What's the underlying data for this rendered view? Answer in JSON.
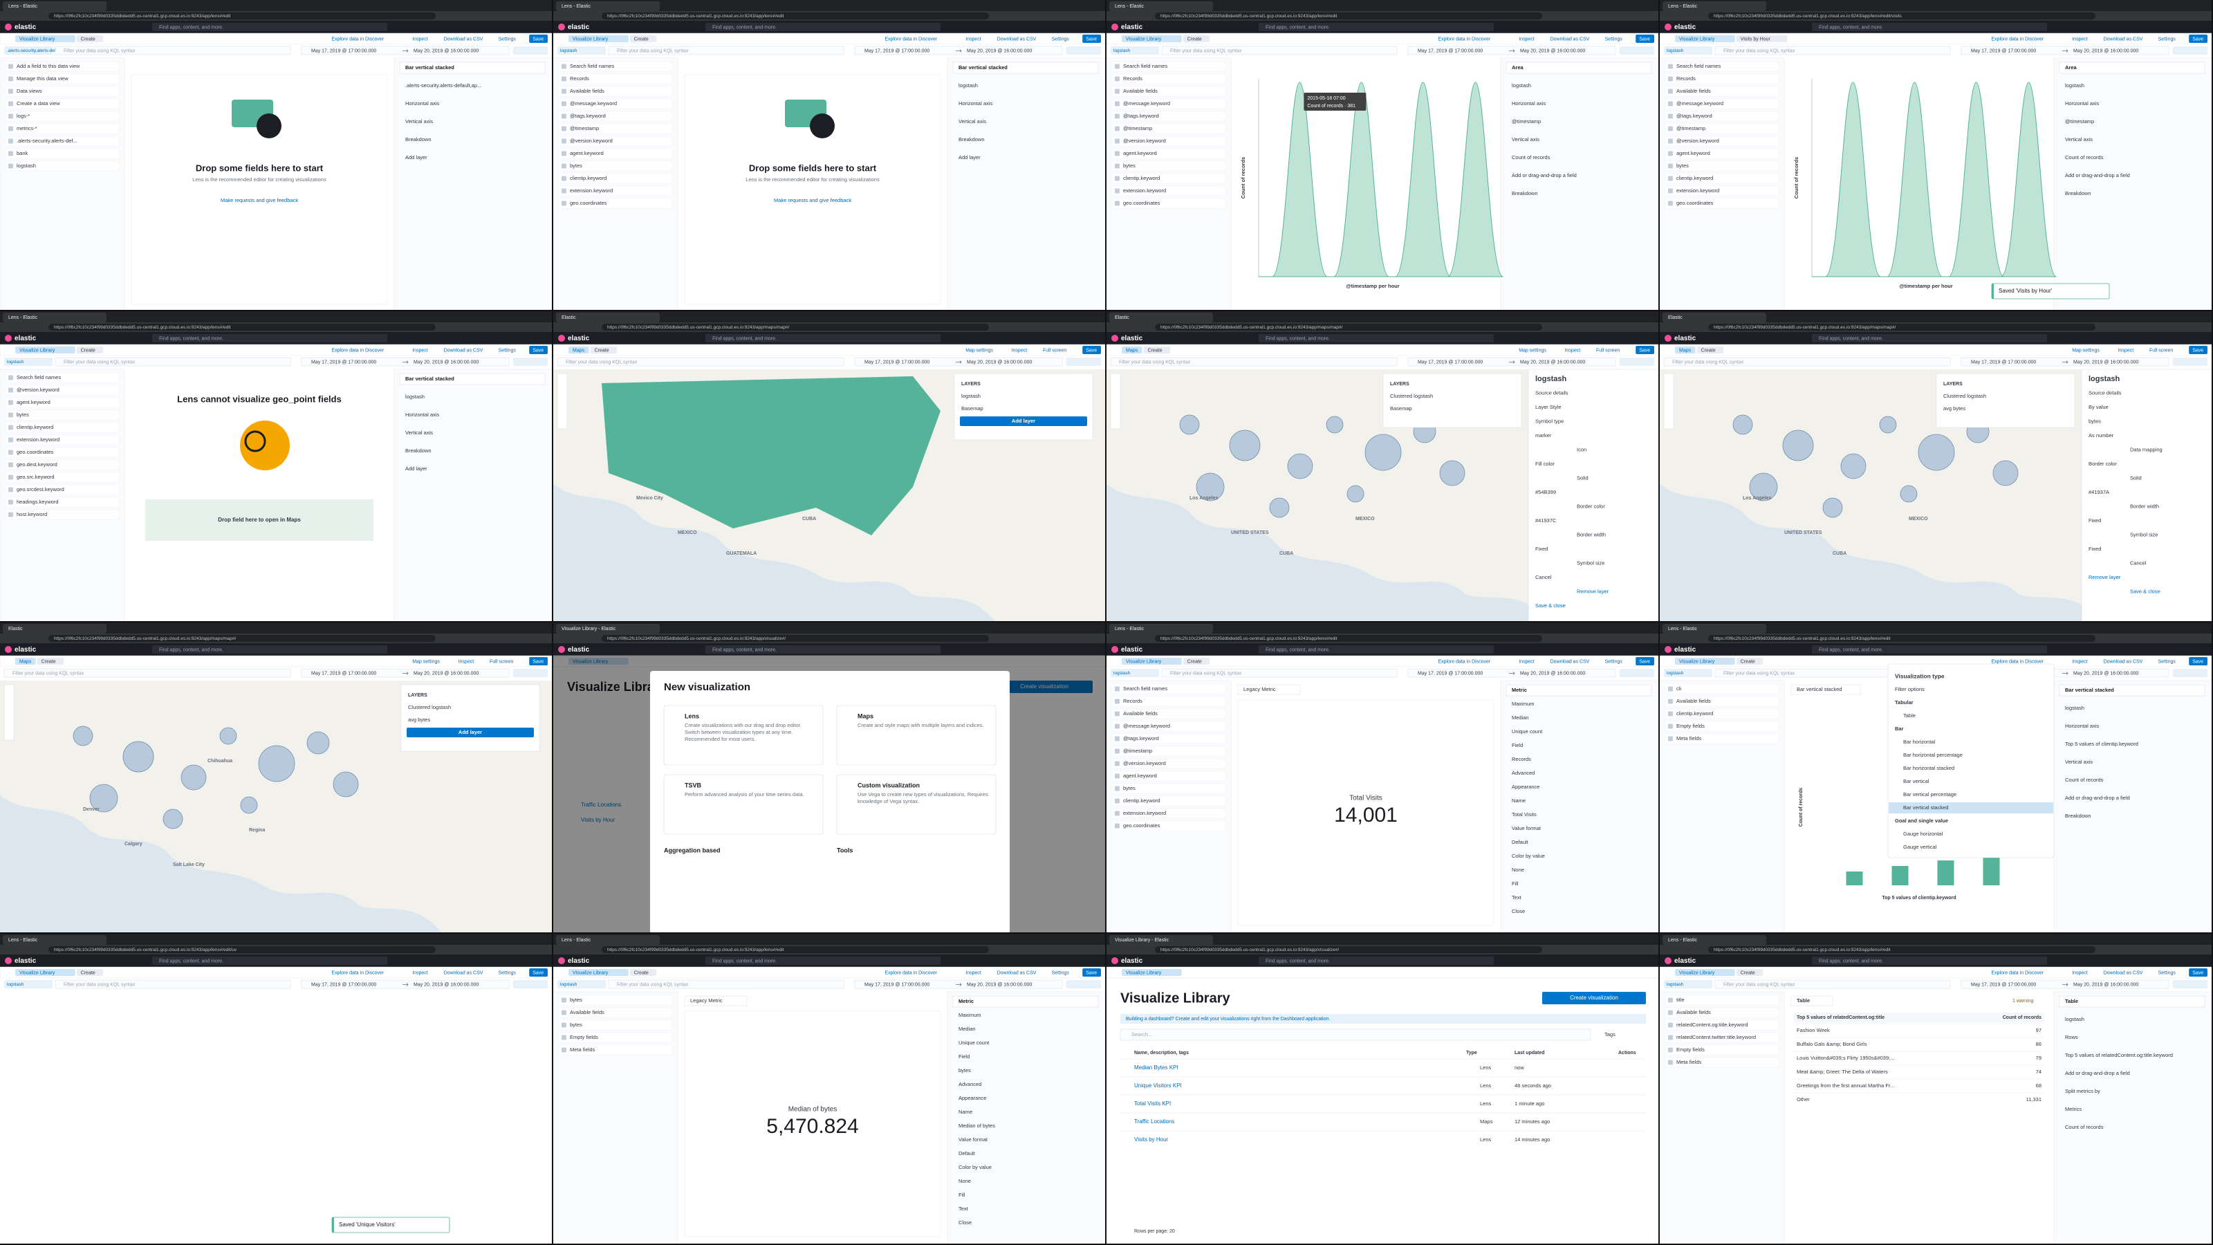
{
  "common": {
    "brand": "elastic",
    "search": "Find apps, content, and more.",
    "query": "Filter your data using KQL syntax",
    "from": "May 17, 2019 @ 17:00:00.000",
    "to": "May 20, 2019 @ 16:00:00.000"
  },
  "panels": [
    {
      "tab": "Lens - Elastic",
      "url": "https://0f6c2fc10c234f99d0335ddbdedd5.us-central1.gcp.cloud.es.io:9243/app/lens#/edit",
      "crumbs": [
        "Visualize Library",
        "Create"
      ],
      "actions": [
        "Explore data in Discover",
        "Inspect",
        "Download as CSV",
        "Settings",
        "Save"
      ],
      "filter": true,
      "index": ".alerts-security.alerts-default,ap...",
      "kind": "empty",
      "left": [
        "Add a field to this data view",
        "Manage this data view",
        "Data views",
        "Create a data view",
        "logs-*",
        "metrics-*",
        ".alerts-security.alerts-def...",
        "bank",
        "logstash"
      ],
      "center": [
        "Drop some fields here to start",
        "Lens is the recommended editor for creating visualizations",
        "Make requests and give feedback"
      ],
      "right": [
        "Bar vertical stacked",
        ".alerts-security.alerts-default,ap...",
        "Horizontal axis",
        "Vertical axis",
        "Breakdown",
        "Add layer"
      ]
    },
    {
      "tab": "Lens - Elastic",
      "url": "https://0f6c2fc10c234f99d0335ddbdedd5.us-central1.gcp.cloud.es.io:9243/app/lens#/edit",
      "crumbs": [
        "Visualize Library",
        "Create"
      ],
      "actions": [
        "Explore data in Discover",
        "Inspect",
        "Download as CSV",
        "Settings",
        "Save"
      ],
      "filter": true,
      "index": "logstash",
      "kind": "empty",
      "left": [
        "Search field names",
        "Records",
        "Available fields",
        "@message.keyword",
        "@tags.keyword",
        "@timestamp",
        "@version.keyword",
        "agent.keyword",
        "bytes",
        "clientip.keyword",
        "extension.keyword",
        "geo.coordinates"
      ],
      "center": [
        "Drop some fields here to start",
        "Lens is the recommended editor for creating visualizations",
        "Make requests and give feedback"
      ],
      "right": [
        "Bar vertical stacked",
        "logstash",
        "Horizontal axis",
        "Vertical axis",
        "Breakdown",
        "Add layer"
      ]
    },
    {
      "tab": "Lens - Elastic",
      "url": "https://0f6c2fc10c234f99d0335ddbdedd5.us-central1.gcp.cloud.es.io:9243/app/lens#/edit",
      "crumbs": [
        "Visualize Library",
        "Create"
      ],
      "actions": [
        "Explore data in Discover",
        "Inspect",
        "Download as CSV",
        "Settings",
        "Save"
      ],
      "filter": true,
      "index": "logstash",
      "kind": "area",
      "left": [
        "Search field names",
        "Records",
        "Available fields",
        "@message.keyword",
        "@tags.keyword",
        "@timestamp",
        "@version.keyword",
        "agent.keyword",
        "bytes",
        "clientip.keyword",
        "extension.keyword",
        "geo.coordinates"
      ],
      "center": [
        "2015-05-18 07:00",
        "Count of records · 381",
        "@timestamp per hour",
        "Count of records"
      ],
      "right": [
        "Area",
        "logstash",
        "Horizontal axis",
        "@timestamp",
        "Vertical axis",
        "Count of records",
        "Add or drag-and-drop a field",
        "Breakdown"
      ]
    },
    {
      "tab": "Lens - Elastic",
      "url": "https://0f6c2fc10c234f99d0335ddbdedd5.us-central1.gcp.cloud.es.io:9243/app/lens#/edit/visits",
      "crumbs": [
        "Visualize Library",
        "Visits by Hour"
      ],
      "actions": [
        "Explore data in Discover",
        "Inspect",
        "Download as CSV",
        "Settings",
        "Save"
      ],
      "filter": true,
      "index": "logstash",
      "kind": "area",
      "left": [
        "Search field names",
        "Records",
        "Available fields",
        "@message.keyword",
        "@tags.keyword",
        "@timestamp",
        "@version.keyword",
        "agent.keyword",
        "bytes",
        "clientip.keyword",
        "extension.keyword",
        "geo.coordinates"
      ],
      "center": [
        "@timestamp per hour",
        "Count of records"
      ],
      "right": [
        "Area",
        "logstash",
        "Horizontal axis",
        "@timestamp",
        "Vertical axis",
        "Count of records",
        "Add or drag-and-drop a field",
        "Breakdown"
      ],
      "toast": "Saved 'Visits by Hour'"
    },
    {
      "tab": "Lens - Elastic",
      "url": "https://0f6c2fc10c234f99d0335ddbdedd5.us-central1.gcp.cloud.es.io:9243/app/lens#/edit",
      "crumbs": [
        "Visualize Library",
        "Create"
      ],
      "actions": [
        "Explore data in Discover",
        "Inspect",
        "Download as CSV",
        "Settings",
        "Save"
      ],
      "filter": true,
      "index": "logstash",
      "kind": "geo",
      "left": [
        "Search field names",
        "@version.keyword",
        "agent.keyword",
        "bytes",
        "clientip.keyword",
        "extension.keyword",
        "geo.coordinates",
        "geo.dest.keyword",
        "geo.src.keyword",
        "geo.srcdest.keyword",
        "headings.keyword",
        "host.keyword"
      ],
      "center": [
        "Lens cannot visualize geo_point fields",
        "Drop field here to open in Maps"
      ],
      "right": [
        "Bar vertical stacked",
        "logstash",
        "Horizontal axis",
        "Vertical axis",
        "Breakdown",
        "Add layer"
      ]
    },
    {
      "tab": "Elastic",
      "url": "https://0f6c2fc10c234f99d0335ddbdedd5.us-central1.gcp.cloud.es.io:9243/app/maps/map#/",
      "crumbs": [
        "Maps",
        "Create"
      ],
      "actions": [
        "Map settings",
        "Inspect",
        "Full screen",
        "Save"
      ],
      "filter": true,
      "kind": "map",
      "center": [
        "MEXICO",
        "CUBA",
        "GUATEMALA",
        "Mexico City"
      ],
      "layers": [
        "LAYERS",
        "logstash",
        "Basemap",
        "Add layer"
      ]
    },
    {
      "tab": "Elastic",
      "url": "https://0f6c2fc10c234f99d0335ddbdedd5.us-central1.gcp.cloud.es.io:9243/app/maps/map#/",
      "crumbs": [
        "Maps",
        "Create"
      ],
      "actions": [
        "Map settings",
        "Inspect",
        "Full screen",
        "Save"
      ],
      "filter": true,
      "kind": "clusters",
      "center": [
        "UNITED STATES",
        "MEXICO",
        "CUBA",
        "Los Angeles"
      ],
      "layers": [
        "LAYERS",
        "Clustered logstash",
        "Basemap"
      ],
      "right": [
        "logstash",
        "Source details",
        "Layer Style",
        "Symbol type",
        "marker",
        "Icon",
        "Fill color",
        "Solid",
        "#54B399",
        "Border color",
        "#41937C",
        "Border width",
        "Fixed",
        "Symbol size",
        "Cancel",
        "Remove layer",
        "Save & close"
      ]
    },
    {
      "tab": "Elastic",
      "url": "https://0f6c2fc10c234f99d0335ddbdedd5.us-central1.gcp.cloud.es.io:9243/app/maps/map#/",
      "crumbs": [
        "Maps",
        "Create"
      ],
      "actions": [
        "Map settings",
        "Inspect",
        "Full screen",
        "Save"
      ],
      "filter": true,
      "kind": "clusters",
      "center": [
        "UNITED STATES",
        "MEXICO",
        "CUBA",
        "Los Angeles"
      ],
      "layers": [
        "LAYERS",
        "Clustered logstash",
        "avg bytes"
      ],
      "right": [
        "logstash",
        "Source details",
        "By value",
        "bytes",
        "As number",
        "Data mapping",
        "Border color",
        "Solid",
        "#41937A",
        "Border width",
        "Fixed",
        "Symbol size",
        "Fixed",
        "Cancel",
        "Remove layer",
        "Save & close"
      ]
    },
    {
      "tab": "Elastic",
      "url": "https://0f6c2fc10c234f99d0335ddbdedd5.us-central1.gcp.cloud.es.io:9243/app/maps/map#/",
      "crumbs": [
        "Maps",
        "Create"
      ],
      "actions": [
        "Map settings",
        "Inspect",
        "Full screen",
        "Save"
      ],
      "filter": true,
      "kind": "clusters",
      "center": [
        "Calgary",
        "Regina",
        "Salt Lake City",
        "Denver",
        "Chihuahua"
      ],
      "layers": [
        "LAYERS",
        "Clustered logstash",
        "avg bytes",
        "Add layer"
      ]
    },
    {
      "tab": "Visualize Library - Elastic",
      "url": "https://0f6c2fc10c234f99d0335ddbdedd5.us-central1.gcp.cloud.es.io:9243/app/visualize#/",
      "crumbs": [
        "Visualize Library"
      ],
      "actions": [],
      "filter": false,
      "kind": "modal",
      "center": [
        "Visualize Library",
        "Create visualization",
        "Traffic Locations",
        "Visits by Hour"
      ],
      "modal": [
        "New visualization",
        "Lens",
        "Create visualizations with our drag and drop editor. Switch between visualization types at any time. Recommended for most users.",
        "Maps",
        "Create and style maps with multiple layers and indices.",
        "TSVB",
        "Perform advanced analysis of your time series data.",
        "Custom visualization",
        "Use Vega to create new types of visualizations. Requires knowledge of Vega syntax.",
        "Aggregation based",
        "Tools"
      ]
    },
    {
      "tab": "Lens - Elastic",
      "url": "https://0f6c2fc10c234f99d0335ddbdedd5.us-central1.gcp.cloud.es.io:9243/app/lens#/edit",
      "crumbs": [
        "Visualize Library",
        "Create"
      ],
      "actions": [
        "Explore data in Discover",
        "Inspect",
        "Download as CSV",
        "Settings",
        "Save"
      ],
      "filter": true,
      "index": "logstash",
      "kind": "metric",
      "left": [
        "Search field names",
        "Records",
        "Available fields",
        "@message.keyword",
        "@tags.keyword",
        "@timestamp",
        "@version.keyword",
        "agent.keyword",
        "bytes",
        "clientip.keyword",
        "extension.keyword",
        "geo.coordinates"
      ],
      "center": [
        "Legacy Metric",
        "Total Visits",
        "14,001"
      ],
      "right": [
        "Metric",
        "Maximum",
        "Median",
        "Unique count",
        "Field",
        "Records",
        "Advanced",
        "Appearance",
        "Name",
        "Total Visits",
        "Value format",
        "Default",
        "Color by value",
        "None",
        "Fill",
        "Text",
        "Close"
      ]
    },
    {
      "tab": "Lens - Elastic",
      "url": "https://0f6c2fc10c234f99d0335ddbdedd5.us-central1.gcp.cloud.es.io:9243/app/lens#/edit",
      "crumbs": [
        "Visualize Library",
        "Create"
      ],
      "actions": [
        "Explore data in Discover",
        "Inspect",
        "Download as CSV",
        "Settings",
        "Save"
      ],
      "filter": true,
      "index": "logstash",
      "kind": "bars",
      "left": [
        "cli",
        "Available fields",
        "clientip.keyword",
        "Empty fields",
        "Meta fields"
      ],
      "center": [
        "Bar vertical stacked",
        "Top 5 values of clientip.keyword",
        "Count of records"
      ],
      "right": [
        "Bar vertical stacked",
        "logstash",
        "Horizontal axis",
        "Top 5 values of clientip.keyword",
        "Vertical axis",
        "Count of records",
        "Add or drag-and-drop a field",
        "Breakdown"
      ],
      "popover": [
        "Visualization type",
        "Filter options",
        "Tabular",
        "Table",
        "Bar",
        "Bar horizontal",
        "Bar horizontal percentage",
        "Bar horizontal stacked",
        "Bar vertical",
        "Bar vertical percentage",
        "Bar vertical stacked",
        "Goal and single value",
        "Gauge horizontal",
        "Gauge vertical"
      ]
    },
    {
      "tab": "Lens - Elastic",
      "url": "https://0f6c2fc10c234f99d0335ddbdedd5.us-central1.gcp.cloud.es.io:9243/app/lens#/edit/uv",
      "crumbs": [
        "Visualize Library",
        "Create"
      ],
      "actions": [
        "Explore data in Discover",
        "Inspect",
        "Download as CSV",
        "Settings",
        "Save"
      ],
      "filter": true,
      "index": "logstash",
      "kind": "blank",
      "toast": "Saved 'Unique Visitors'"
    },
    {
      "tab": "Lens - Elastic",
      "url": "https://0f6c2fc10c234f99d0335ddbdedd5.us-central1.gcp.cloud.es.io:9243/app/lens#/edit",
      "crumbs": [
        "Visualize Library",
        "Create"
      ],
      "actions": [
        "Explore data in Discover",
        "Inspect",
        "Download as CSV",
        "Settings",
        "Save"
      ],
      "filter": true,
      "index": "logstash",
      "kind": "metric",
      "left": [
        "bytes",
        "Available fields",
        "bytes",
        "Empty fields",
        "Meta fields"
      ],
      "center": [
        "Legacy Metric",
        "Median of bytes",
        "5,470.824"
      ],
      "right": [
        "Metric",
        "Maximum",
        "Median",
        "Unique count",
        "Field",
        "bytes",
        "Advanced",
        "Appearance",
        "Name",
        "Median of bytes",
        "Value format",
        "Default",
        "Color by value",
        "None",
        "Fill",
        "Text",
        "Close"
      ]
    },
    {
      "tab": "Visualize Library - Elastic",
      "url": "https://0f6c2fc10c234f99d0335ddbdedd5.us-central1.gcp.cloud.es.io:9243/app/visualize#/",
      "crumbs": [
        "Visualize Library"
      ],
      "actions": [],
      "filter": false,
      "kind": "list",
      "center": [
        "Visualize Library",
        "Create visualization",
        "Building a dashboard? Create and edit your visualizations right from the Dashboard application.",
        "Search...",
        "Tags",
        "Name, description, tags",
        "Type",
        "Last updated",
        "Actions",
        "Rows per page: 20"
      ],
      "rows": [
        [
          "Median Bytes KPI",
          "Lens",
          "now"
        ],
        [
          "Unique Visitors KPI",
          "Lens",
          "48 seconds ago"
        ],
        [
          "Total Visits KPI",
          "Lens",
          "1 minute ago"
        ],
        [
          "Traffic Locations",
          "Maps",
          "12 minutes ago"
        ],
        [
          "Visits by Hour",
          "Lens",
          "14 minutes ago"
        ]
      ]
    },
    {
      "tab": "Lens - Elastic",
      "url": "https://0f6c2fc10c234f99d0335ddbdedd5.us-central1.gcp.cloud.es.io:9243/app/lens#/edit",
      "crumbs": [
        "Visualize Library",
        "Create"
      ],
      "actions": [
        "Explore data in Discover",
        "Inspect",
        "Download as CSV",
        "Settings",
        "Save"
      ],
      "filter": true,
      "index": "logstash",
      "kind": "table",
      "left": [
        "title",
        "Available fields",
        "relatedContent.og:title.keyword",
        "relatedContent.twitter:title.keyword",
        "Empty fields",
        "Meta fields"
      ],
      "center": [
        "Table",
        "1 warning"
      ],
      "cols": [
        "Top 5 values of relatedContent.og:title",
        "Count of records"
      ],
      "rows": [
        [
          "Fashion Week",
          "97"
        ],
        [
          "Buffalo Gals &amp; Bond Girls",
          "86"
        ],
        [
          "Louis Vuitton&#039;s Flirty 1950s&#039;...",
          "79"
        ],
        [
          "Meat &amp; Greet: The Delta of Waters",
          "74"
        ],
        [
          "Greetings from the first annual Martha Fr...",
          "68"
        ],
        [
          "Other",
          "11,331"
        ]
      ],
      "right": [
        "Table",
        "logstash",
        "Rows",
        "Top 5 values of relatedContent.og:title.keyword",
        "Add or drag-and-drop a field",
        "Split metrics by",
        "Metrics",
        "Count of records"
      ]
    }
  ]
}
